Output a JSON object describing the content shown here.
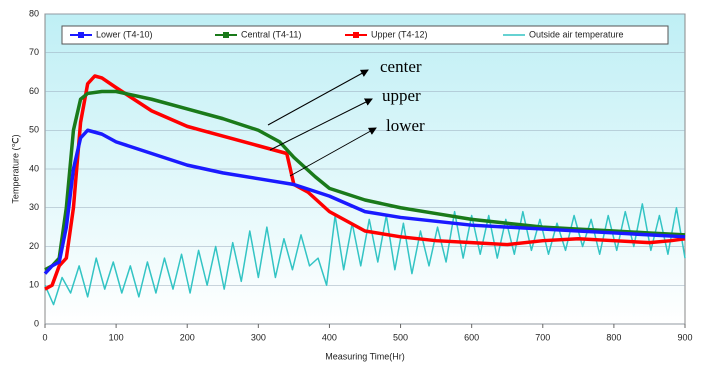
{
  "chart_data": {
    "type": "line",
    "x_label": "Measuring Time(Hr)",
    "y_label": "Temperature (℃)",
    "annotations": [
      "center",
      "upper",
      "lower"
    ],
    "xlim": [
      0,
      900
    ],
    "ylim": [
      0,
      80
    ],
    "xticks": [
      0,
      100,
      200,
      300,
      400,
      500,
      600,
      700,
      800,
      900
    ],
    "yticks": [
      0,
      10,
      20,
      30,
      40,
      50,
      60,
      70,
      80
    ],
    "grid": true,
    "legend": "top",
    "series": [
      {
        "name": "Lower (T4-10)",
        "color": "#1a1aff",
        "x": [
          0,
          10,
          20,
          30,
          40,
          50,
          60,
          80,
          100,
          150,
          200,
          250,
          300,
          350,
          400,
          450,
          500,
          550,
          600,
          650,
          700,
          750,
          800,
          850,
          900
        ],
        "values": [
          13,
          15,
          16,
          25,
          40,
          48,
          50,
          49,
          47,
          44,
          41,
          39,
          37.5,
          36,
          33,
          29,
          27.5,
          26.5,
          25.5,
          25,
          24.5,
          24,
          23.5,
          23,
          22.5
        ]
      },
      {
        "name": "Central (T4-11)",
        "color": "#1a7a1a",
        "x": [
          0,
          10,
          20,
          30,
          40,
          50,
          60,
          80,
          100,
          150,
          200,
          250,
          300,
          330,
          350,
          380,
          400,
          450,
          500,
          550,
          600,
          650,
          700,
          750,
          800,
          850,
          900
        ],
        "values": [
          14,
          15,
          17,
          30,
          50,
          58,
          59.5,
          60,
          60,
          58,
          55.5,
          53,
          50,
          47,
          43,
          38,
          35,
          32,
          30,
          28.5,
          27,
          26,
          25,
          24.5,
          24,
          23.5,
          23
        ]
      },
      {
        "name": "Upper (T4-12)",
        "color": "#ff0000",
        "x": [
          0,
          10,
          20,
          30,
          40,
          50,
          60,
          70,
          80,
          100,
          150,
          200,
          250,
          300,
          340,
          350,
          370,
          400,
          420,
          450,
          500,
          550,
          600,
          650,
          700,
          750,
          800,
          850,
          880,
          900
        ],
        "values": [
          9,
          10,
          15,
          17,
          30,
          52,
          62,
          64,
          63.5,
          61,
          55,
          51,
          48.5,
          46,
          44,
          36,
          34,
          29,
          27,
          24,
          22.5,
          21.5,
          21,
          20.5,
          21.5,
          22,
          21.5,
          21,
          21.5,
          22
        ]
      },
      {
        "name": "Outside air temperature",
        "color": "#33c4c4",
        "x": [
          0,
          12,
          24,
          36,
          48,
          60,
          72,
          84,
          96,
          108,
          120,
          132,
          144,
          156,
          168,
          180,
          192,
          204,
          216,
          228,
          240,
          252,
          264,
          276,
          288,
          300,
          312,
          324,
          336,
          348,
          360,
          372,
          384,
          396,
          408,
          420,
          432,
          444,
          456,
          468,
          480,
          492,
          504,
          516,
          528,
          540,
          552,
          564,
          576,
          588,
          600,
          612,
          624,
          636,
          648,
          660,
          672,
          684,
          696,
          708,
          720,
          732,
          744,
          756,
          768,
          780,
          792,
          804,
          816,
          828,
          840,
          852,
          864,
          876,
          888,
          900
        ],
        "values": [
          10,
          5,
          12,
          8,
          15,
          7,
          17,
          9,
          16,
          8,
          15,
          7,
          16,
          8,
          17,
          9,
          18,
          8,
          19,
          10,
          20,
          9,
          21,
          11,
          24,
          12,
          25,
          12,
          22,
          14,
          23,
          15,
          17,
          10,
          28,
          14,
          26,
          15,
          27,
          16,
          28,
          14,
          26,
          13,
          24,
          15,
          25,
          16,
          29,
          17,
          28,
          18,
          28,
          17,
          27,
          18,
          29,
          19,
          27,
          18,
          26,
          19,
          28,
          20,
          27,
          18,
          28,
          19,
          29,
          20,
          31,
          19,
          28,
          18,
          30,
          17
        ]
      }
    ]
  }
}
